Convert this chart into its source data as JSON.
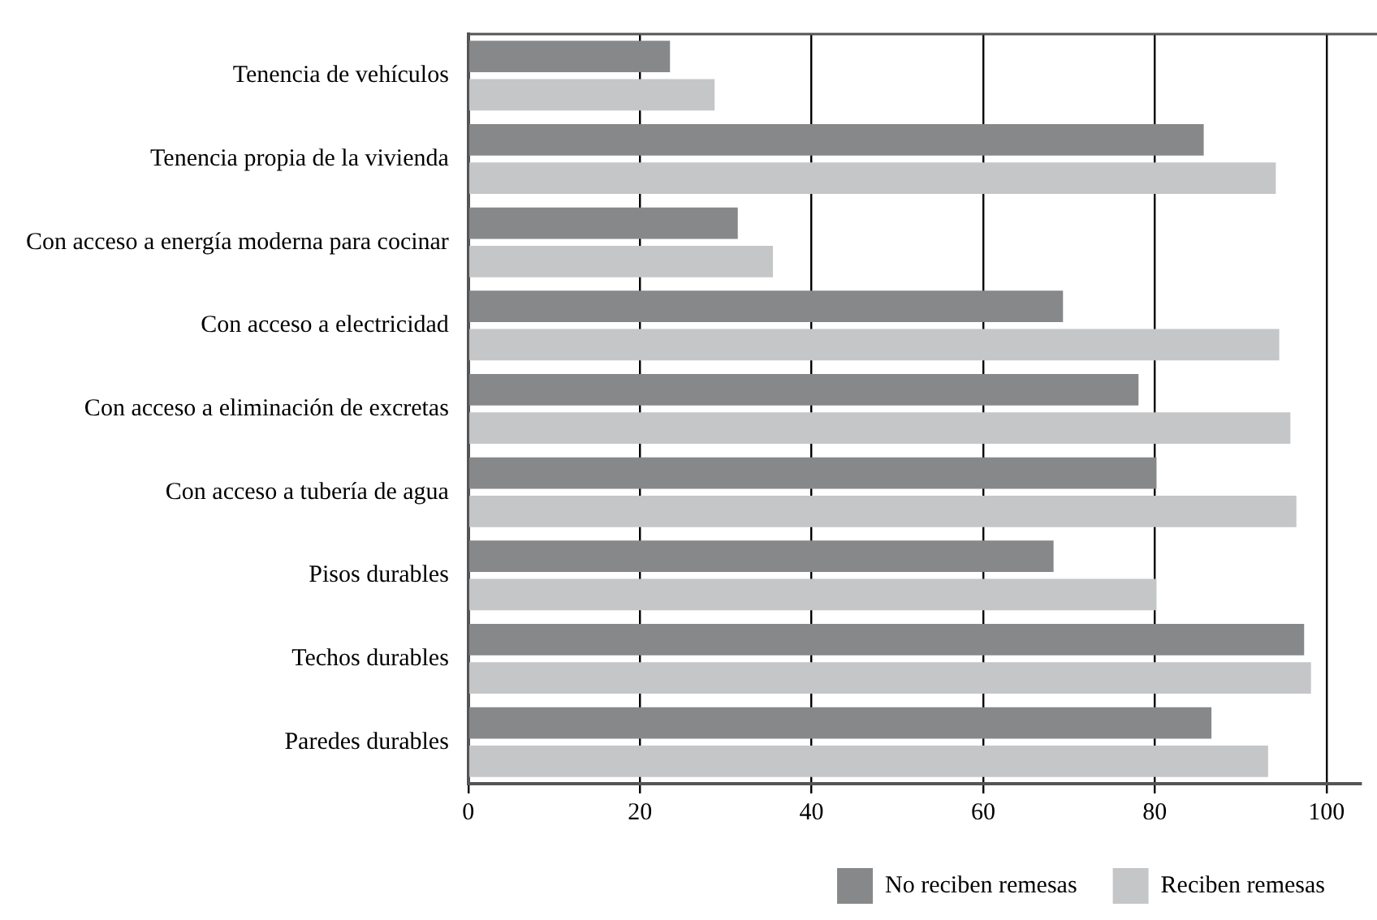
{
  "chart_data": {
    "type": "bar",
    "orientation": "horizontal",
    "categories": [
      "Tenencia de vehículos",
      "Tenencia propia de la vivienda",
      "Con acceso a energía moderna para cocinar",
      "Con acceso a electricidad",
      "Con acceso a eliminación de excretas",
      "Con acceso a tubería de agua",
      "Pisos durables",
      "Techos durables",
      "Paredes durables"
    ],
    "series": [
      {
        "name": "No reciben remesas",
        "color": "#87888a",
        "values": [
          23.5,
          85.7,
          31.4,
          69.3,
          78.1,
          80.2,
          68.2,
          97.4,
          86.6
        ]
      },
      {
        "name": "Reciben remesas",
        "color": "#c5c6c8",
        "values": [
          28.7,
          94.1,
          35.5,
          94.5,
          95.8,
          96.5,
          80.2,
          98.2,
          93.2
        ]
      }
    ],
    "xlim": [
      0,
      104
    ],
    "xticks": [
      0,
      20,
      40,
      60,
      80,
      100
    ],
    "grid": "x",
    "legend": "bottom right"
  }
}
